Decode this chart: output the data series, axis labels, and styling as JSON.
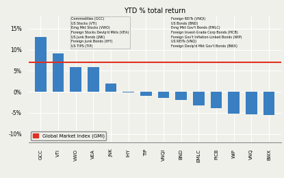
{
  "title": "YTD % total return",
  "categories": [
    "GCC",
    "VTI",
    "VWO",
    "VEA",
    "JNK",
    "IHY",
    "TIP",
    "VNQI",
    "BND",
    "EMLC",
    "PICB",
    "WIP",
    "VNQ",
    "BWX"
  ],
  "values": [
    13.0,
    9.2,
    5.9,
    5.8,
    2.0,
    -0.1,
    -1.0,
    -1.5,
    -2.0,
    -3.2,
    -3.8,
    -5.2,
    -5.3,
    -5.5
  ],
  "bar_color": "#3a7fc1",
  "gmi_value": 7.0,
  "gmi_color": "#e03020",
  "yticks": [
    -10,
    -5,
    0,
    5,
    10,
    15
  ],
  "ylim": [
    -12,
    18
  ],
  "legend_labels_left": [
    "Commodities (GCC)",
    "US Stocks (VTI)",
    "Emg Mkt Stocks (VWO)",
    "Foreign Stocks Devlp'd Mkts (VEA)",
    "US Junk Bonds (JNK)",
    "Foreign Junk Bonds (IHY)",
    "US TIPS (TIP)"
  ],
  "legend_labels_right": [
    "Foreign REITs (VNQI)",
    "US Bonds (BND)",
    "Emg Mkt Gov't Bonds (EMLC)",
    "Foreign Invest-Grade Corp Bonds (PICB)",
    "Foreign Gov't Inflation-Linked Bonds (WIP)",
    "US REITs (VNQ)",
    "Foreign Devlp'd Mkt Gov't Bonds (BWX)"
  ],
  "gmi_legend": "Global Market Index (GMI)",
  "background_color": "#f0f0eb"
}
